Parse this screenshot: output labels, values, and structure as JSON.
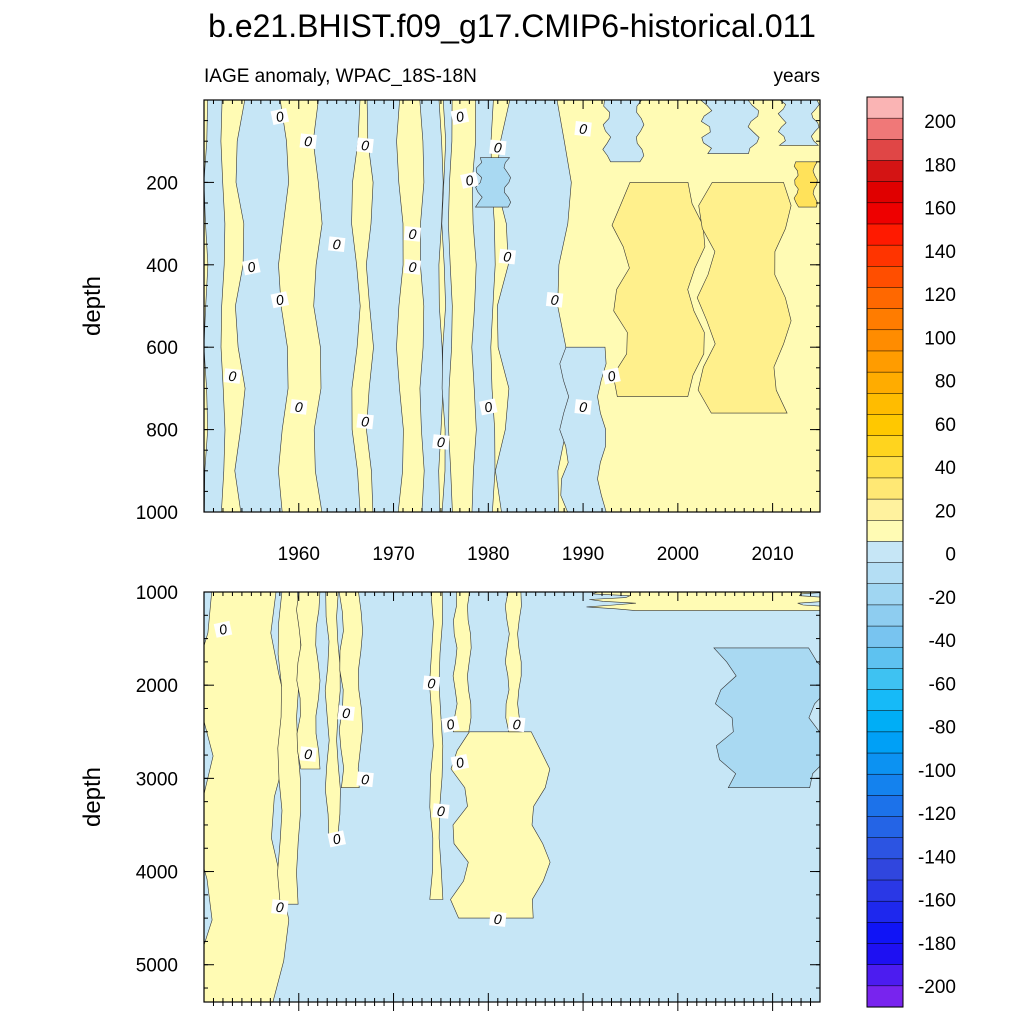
{
  "chart_data": {
    "type": "heatmap",
    "title": "b.e21.BHIST.f09_g17.CMIP6-historical.011",
    "variable_label": "IAGE anomaly, WPAC_18S-18N",
    "units_label": "years",
    "ylabel": "depth",
    "xlim": [
      1950,
      2015
    ],
    "x_ticks": [
      1960,
      1970,
      1980,
      1990,
      2000,
      2010
    ],
    "contour_label": "0",
    "colors": {
      "pos1": "#fffbb4",
      "pos2": "#fff08c",
      "pos3": "#ffe25a",
      "neg1": "#c6e6f6",
      "neg2": "#a9d9f2",
      "neg3": "#8ecdf0",
      "line": "#333333"
    },
    "upper_panel": {
      "ylim": [
        0,
        1000
      ],
      "y_ticks": [
        200,
        400,
        600,
        800,
        1000
      ],
      "negative_zones": [
        {
          "x": [
            1950.2,
            1952.0
          ],
          "depth": [
            0,
            1000
          ]
        },
        {
          "x": [
            1953.8,
            1958.4
          ],
          "depth": [
            0,
            1000
          ]
        },
        {
          "x": [
            1962.0,
            1966.0
          ],
          "depth": [
            0,
            1000
          ]
        },
        {
          "x": [
            1967.5,
            1970.7
          ],
          "depth": [
            0,
            1000
          ]
        },
        {
          "x": [
            1973.0,
            1975.0
          ],
          "depth": [
            0,
            1000
          ]
        },
        {
          "x": [
            1975.3,
            1976.0
          ],
          "depth": [
            0,
            1000
          ]
        },
        {
          "x": [
            1978.5,
            1980.5
          ],
          "depth": [
            0,
            1000
          ]
        },
        {
          "x": [
            1981.5,
            1988.0
          ],
          "depth": [
            0,
            1000
          ]
        },
        {
          "x": [
            1988.0,
            1992.0
          ],
          "depth": [
            600,
            1000
          ]
        },
        {
          "x": [
            1992.5,
            1996.0
          ],
          "depth": [
            0,
            150
          ]
        },
        {
          "x": [
            2003.0,
            2008.0
          ],
          "depth": [
            0,
            130
          ]
        },
        {
          "x": [
            2011.0,
            2014.5
          ],
          "depth": [
            0,
            110
          ]
        }
      ],
      "strong_negative_zones": [
        {
          "x": [
            1979.0,
            1982.0
          ],
          "depth": [
            140,
            260
          ]
        }
      ],
      "moderate_positive_zones": [
        {
          "x": [
            1994.0,
            2002.0
          ],
          "depth": [
            200,
            720
          ]
        },
        {
          "x": [
            2003.0,
            2011.0
          ],
          "depth": [
            200,
            760
          ]
        }
      ],
      "strong_positive_zones": [
        {
          "x": [
            2012.5,
            2014.5
          ],
          "depth": [
            150,
            260
          ]
        }
      ],
      "zero_labels": [
        {
          "x": 1958,
          "depth": 40
        },
        {
          "x": 1961,
          "depth": 100
        },
        {
          "x": 1967,
          "depth": 110
        },
        {
          "x": 1977,
          "depth": 40
        },
        {
          "x": 1981,
          "depth": 115
        },
        {
          "x": 1990,
          "depth": 70
        },
        {
          "x": 1978,
          "depth": 195
        },
        {
          "x": 1964,
          "depth": 350
        },
        {
          "x": 1972,
          "depth": 325
        },
        {
          "x": 1955,
          "depth": 405
        },
        {
          "x": 1972,
          "depth": 405
        },
        {
          "x": 1982,
          "depth": 380
        },
        {
          "x": 1958,
          "depth": 485
        },
        {
          "x": 1987,
          "depth": 485
        },
        {
          "x": 1953,
          "depth": 670
        },
        {
          "x": 1993,
          "depth": 670
        },
        {
          "x": 1960,
          "depth": 745
        },
        {
          "x": 1967,
          "depth": 780
        },
        {
          "x": 1980,
          "depth": 745
        },
        {
          "x": 1990,
          "depth": 745
        },
        {
          "x": 1975,
          "depth": 830
        }
      ]
    },
    "lower_panel": {
      "ylim": [
        1000,
        5400
      ],
      "y_ticks": [
        1000,
        2000,
        3000,
        4000,
        5000
      ],
      "positive_zones": [
        {
          "x": [
            1950.0,
            1958.0
          ],
          "depth": [
            1000,
            5400
          ]
        },
        {
          "x": [
            1958.0,
            1960.0
          ],
          "depth": [
            1000,
            4350
          ]
        },
        {
          "x": [
            1960.0,
            1962.0
          ],
          "depth": [
            1000,
            2900
          ]
        },
        {
          "x": [
            1963.0,
            1964.2
          ],
          "depth": [
            1000,
            3650
          ]
        },
        {
          "x": [
            1964.5,
            1966.5
          ],
          "depth": [
            1000,
            3100
          ]
        },
        {
          "x": [
            1974.0,
            1975.0
          ],
          "depth": [
            1000,
            4300
          ]
        },
        {
          "x": [
            1976.5,
            1978.0
          ],
          "depth": [
            1000,
            2500
          ]
        },
        {
          "x": [
            1977.0,
            1985.5
          ],
          "depth": [
            2500,
            4500
          ]
        },
        {
          "x": [
            1982.0,
            1983.3
          ],
          "depth": [
            1000,
            2500
          ]
        },
        {
          "x": [
            1993.0,
            2015.0
          ],
          "depth": [
            1000,
            1200
          ]
        }
      ],
      "moderate_negative_zones": [
        {
          "x": [
            2005.0,
            2015.0
          ],
          "depth": [
            1600,
            3100
          ]
        }
      ],
      "zero_labels": [
        {
          "x": 1952,
          "depth": 1400
        },
        {
          "x": 1974,
          "depth": 1980
        },
        {
          "x": 1965,
          "depth": 2300
        },
        {
          "x": 1976,
          "depth": 2420
        },
        {
          "x": 1983,
          "depth": 2420
        },
        {
          "x": 1961,
          "depth": 2740
        },
        {
          "x": 1977,
          "depth": 2830
        },
        {
          "x": 1967,
          "depth": 3010
        },
        {
          "x": 1975,
          "depth": 3350
        },
        {
          "x": 1964,
          "depth": 3650
        },
        {
          "x": 1958,
          "depth": 4380
        },
        {
          "x": 1981,
          "depth": 4510
        }
      ]
    },
    "colorbar": {
      "labels": [
        "200",
        "180",
        "160",
        "140",
        "120",
        "100",
        "80",
        "60",
        "40",
        "20",
        "0",
        "-20",
        "-40",
        "-60",
        "-80",
        "-100",
        "-120",
        "-140",
        "-160",
        "-180",
        "-200"
      ],
      "colors": [
        "#fab4b4",
        "#f07878",
        "#e04646",
        "#d41414",
        "#e00000",
        "#ee0000",
        "#ff1a00",
        "#ff3400",
        "#ff4e00",
        "#ff6800",
        "#ff7c00",
        "#ff8c00",
        "#ff9c00",
        "#ffac00",
        "#ffbc00",
        "#ffc800",
        "#ffd41e",
        "#ffe04a",
        "#ffe874",
        "#fff29e",
        "#fffbb4",
        "#c6e6f6",
        "#b4def4",
        "#a0d6f2",
        "#8ecdf0",
        "#78c4f0",
        "#5ec2f0",
        "#3ec2f2",
        "#16baf8",
        "#00aef6",
        "#00a0f6",
        "#0c92f2",
        "#1482ee",
        "#1c72ea",
        "#2464e6",
        "#2c54e2",
        "#3046de",
        "#2a38e6",
        "#1e28ee",
        "#1014f6",
        "#1e10f2",
        "#4c1cf0",
        "#7824ee"
      ]
    }
  }
}
